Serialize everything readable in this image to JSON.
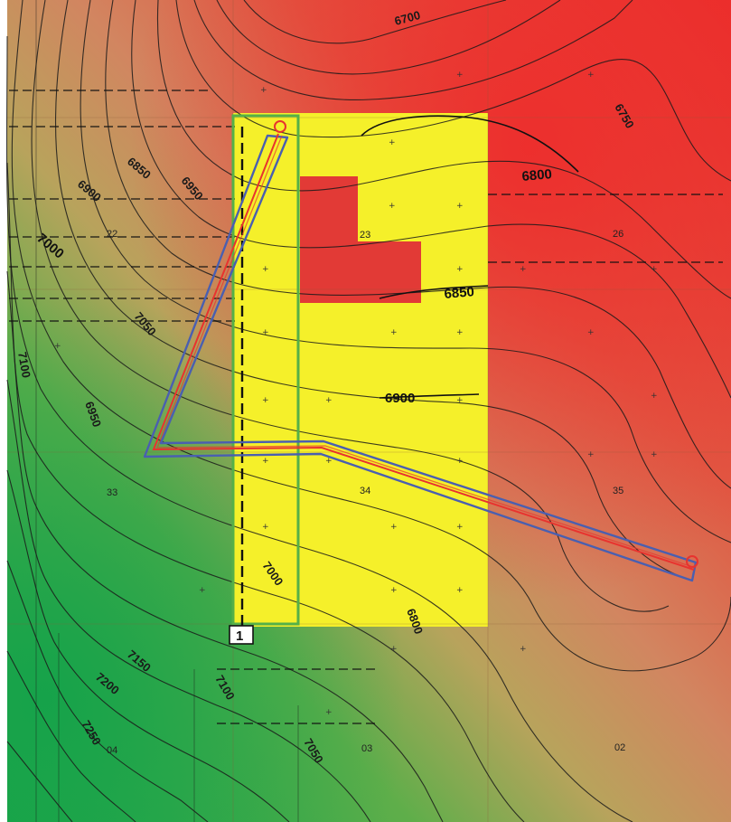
{
  "contour_labels": [
    {
      "text": "6700"
    },
    {
      "text": "6750"
    },
    {
      "text": "6800"
    },
    {
      "text": "6850"
    },
    {
      "text": "6900"
    },
    {
      "text": "6950"
    },
    {
      "text": "7000"
    },
    {
      "text": "6850"
    },
    {
      "text": "6900"
    },
    {
      "text": "7050"
    },
    {
      "text": "7100"
    },
    {
      "text": "6950"
    },
    {
      "text": "7150"
    },
    {
      "text": "7200"
    },
    {
      "text": "7100"
    },
    {
      "text": "7250"
    },
    {
      "text": "7050"
    },
    {
      "text": "6800"
    },
    {
      "text": "7000"
    }
  ],
  "section_labels": [
    {
      "text": "22"
    },
    {
      "text": "23"
    },
    {
      "text": "26"
    },
    {
      "text": "33"
    },
    {
      "text": "34"
    },
    {
      "text": "35"
    },
    {
      "text": "04"
    },
    {
      "text": "03"
    },
    {
      "text": "02"
    }
  ],
  "marker": {
    "label": "1"
  },
  "colors": {
    "low_zone": "#2cb24c",
    "mid_zone": "#d1a35a",
    "high_zone": "#e8322e",
    "lease_yellow": "#f5f02a",
    "lease_red": "#e23a36",
    "wellbore_outer": "#4a5fb0",
    "wellbore_inner": "#e8332f",
    "unit_outline": "#55b048",
    "cross_section_line": "#111111"
  }
}
